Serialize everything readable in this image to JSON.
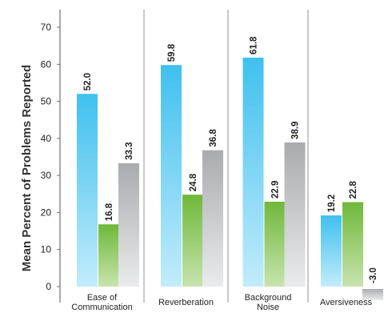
{
  "chart_data": {
    "type": "bar",
    "ylabel": "Mean Percent of Problems Reported",
    "xlabel": "",
    "ylim": [
      0,
      70
    ],
    "yticks": [
      "0",
      "10",
      "20",
      "30",
      "40",
      "50",
      "60",
      "70"
    ],
    "grid": false,
    "legend": "none",
    "categories": [
      {
        "label_lines": [
          "Ease of",
          "Communication"
        ],
        "values": [
          "52.0",
          "16.8",
          "33.3"
        ]
      },
      {
        "label_lines": [
          "Reverberation"
        ],
        "values": [
          "59.8",
          "24.8",
          "36.8"
        ]
      },
      {
        "label_lines": [
          "Background",
          "Noise"
        ],
        "values": [
          "61.8",
          "22.9",
          "38.9"
        ]
      },
      {
        "label_lines": [
          "Aversiveness"
        ],
        "values": [
          "19.2",
          "22.8",
          "-3.0"
        ]
      }
    ],
    "series_colors": [
      "#4cc6f0",
      "#7cbf45",
      "#b8babd"
    ]
  }
}
